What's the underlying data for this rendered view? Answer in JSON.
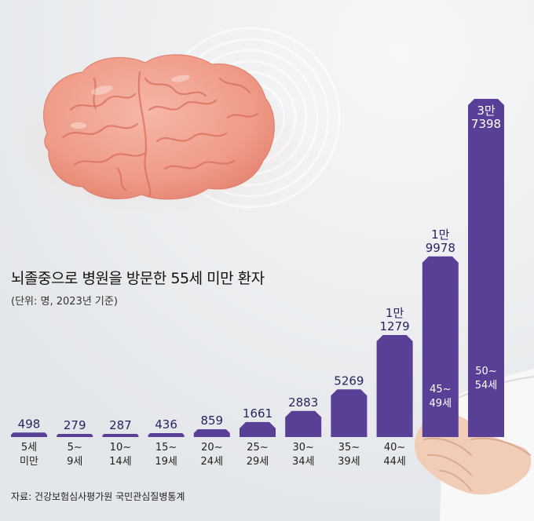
{
  "title": "뇌졸중으로 병원을 방문한 55세 미만 환자",
  "subtitle": "(단위: 명, 2023년 기준)",
  "source": "자료: 건강보험심사평가원 국민관심질병통계",
  "colors": {
    "bar": "#5a3f97",
    "background": "#e9ecee",
    "brain": "#f3a593"
  },
  "chart_data": {
    "type": "bar",
    "title": "뇌졸중으로 병원을 방문한 55세 미만 환자",
    "xlabel": "",
    "ylabel": "",
    "unit": "명",
    "categories": [
      "5세 미만",
      "5~9세",
      "10~14세",
      "15~19세",
      "20~24세",
      "25~29세",
      "30~34세",
      "35~39세",
      "40~44세",
      "45~49세",
      "50~54세"
    ],
    "category_lines": [
      [
        "5세",
        "미만"
      ],
      [
        "5~",
        "9세"
      ],
      [
        "10~",
        "14세"
      ],
      [
        "15~",
        "19세"
      ],
      [
        "20~",
        "24세"
      ],
      [
        "25~",
        "29세"
      ],
      [
        "30~",
        "34세"
      ],
      [
        "35~",
        "39세"
      ],
      [
        "40~",
        "44세"
      ],
      [
        "45~",
        "49세"
      ],
      [
        "50~",
        "54세"
      ]
    ],
    "values": [
      498,
      279,
      287,
      436,
      859,
      1661,
      2883,
      5269,
      11279,
      19978,
      37398
    ],
    "value_labels": [
      [
        "498"
      ],
      [
        "279"
      ],
      [
        "287"
      ],
      [
        "436"
      ],
      [
        "859"
      ],
      [
        "1661"
      ],
      [
        "2883"
      ],
      [
        "5269"
      ],
      [
        "1만",
        "1279"
      ],
      [
        "1만",
        "9978"
      ],
      [
        "3만",
        "7398"
      ]
    ],
    "ylim": [
      0,
      37398
    ],
    "grid": false,
    "legend": "none"
  }
}
